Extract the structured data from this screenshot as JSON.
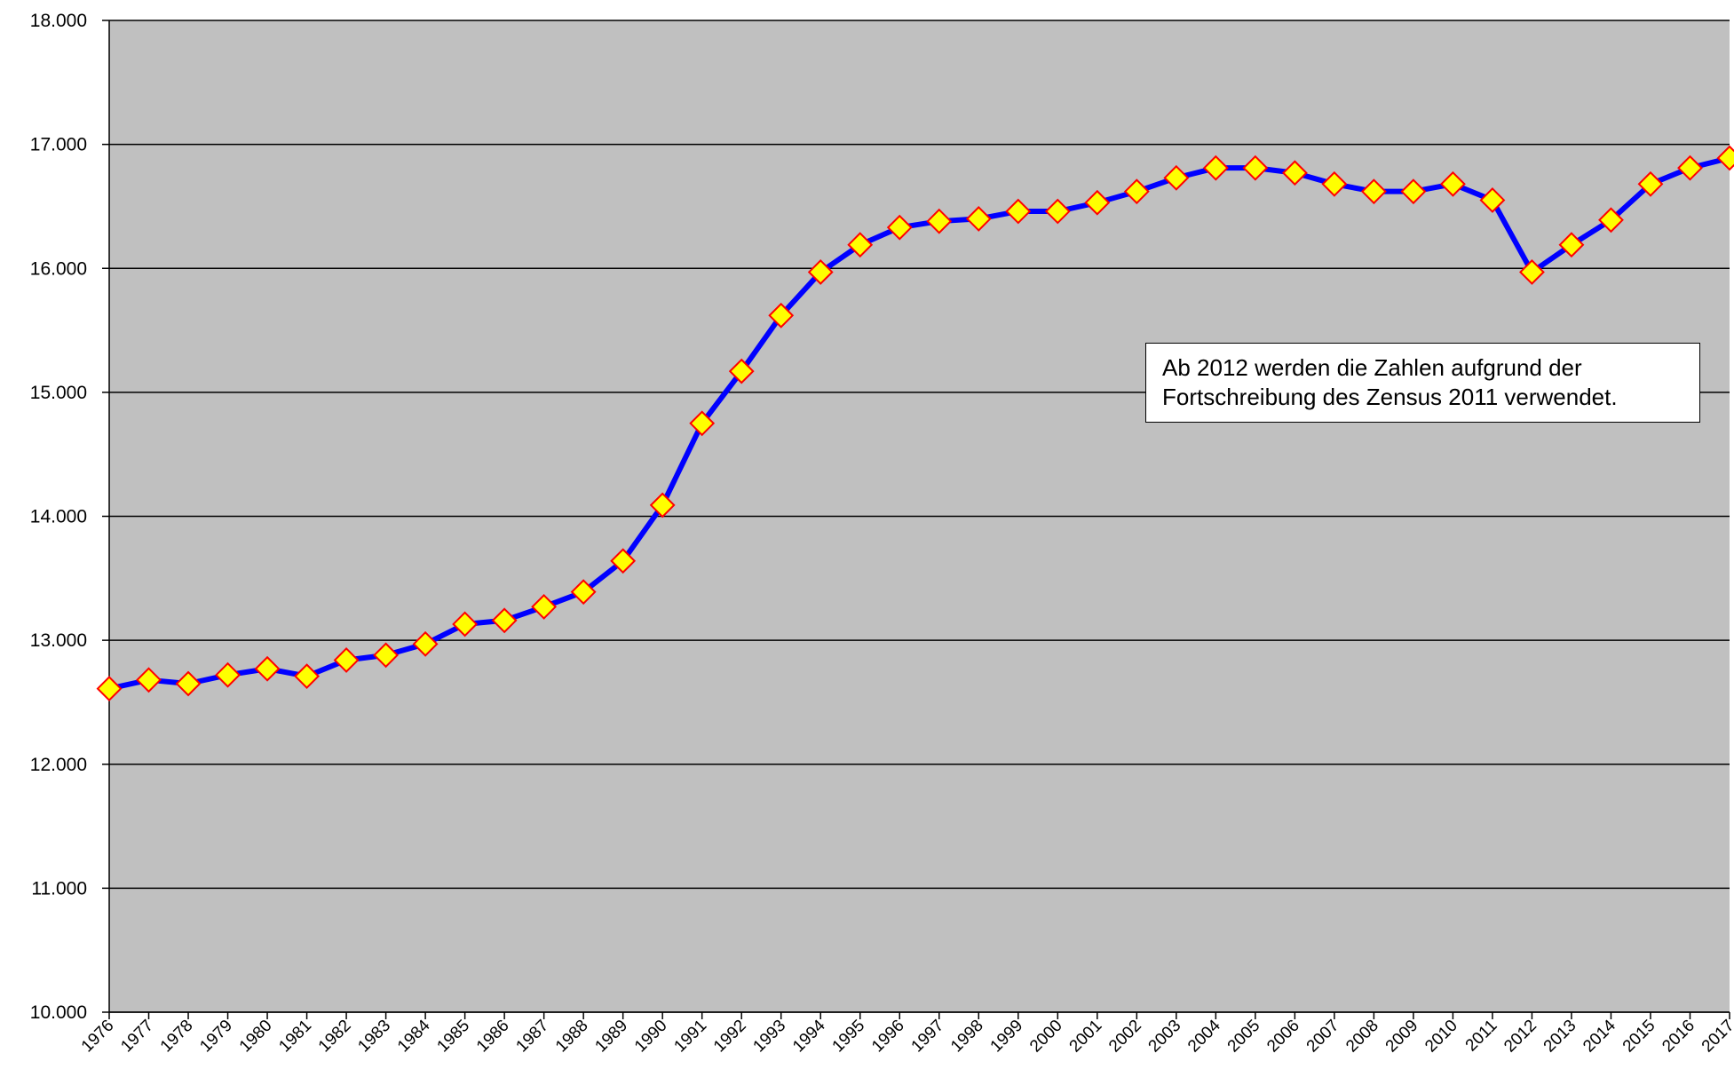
{
  "chart_data": {
    "type": "line",
    "title": "",
    "xlabel": "",
    "ylabel": "",
    "x": [
      1976,
      1977,
      1978,
      1979,
      1980,
      1981,
      1982,
      1983,
      1984,
      1985,
      1986,
      1987,
      1988,
      1989,
      1990,
      1991,
      1992,
      1993,
      1994,
      1995,
      1996,
      1997,
      1998,
      1999,
      2000,
      2001,
      2002,
      2003,
      2004,
      2005,
      2006,
      2007,
      2008,
      2009,
      2010,
      2011,
      2012,
      2013,
      2014,
      2015,
      2016,
      2017
    ],
    "series": [
      {
        "values": [
          12610,
          12680,
          12650,
          12720,
          12770,
          12710,
          12840,
          12880,
          12970,
          13130,
          13160,
          13270,
          13390,
          13640,
          14090,
          14750,
          15170,
          15620,
          15970,
          16190,
          16330,
          16380,
          16400,
          16460,
          16460,
          16530,
          16620,
          16730,
          16810,
          16810,
          16770,
          16680,
          16620,
          16620,
          16680,
          16550,
          15970,
          16190,
          16390,
          16680,
          16810,
          16890
        ],
        "line_color": "#0000ff",
        "marker": "diamond",
        "marker_fill": "#ffff00",
        "marker_edge": "#ff0000"
      }
    ],
    "ylim": [
      10000,
      18000
    ],
    "yticks": [
      10000,
      11000,
      12000,
      13000,
      14000,
      15000,
      16000,
      17000,
      18000
    ],
    "ytick_labels": [
      "10.000",
      "11.000",
      "12.000",
      "13.000",
      "14.000",
      "15.000",
      "16.000",
      "17.000",
      "18.000"
    ],
    "xtick_labels": [
      "1976",
      "1977",
      "1978",
      "1979",
      "1980",
      "1981",
      "1982",
      "1983",
      "1984",
      "1985",
      "1986",
      "1987",
      "1988",
      "1989",
      "1990",
      "1991",
      "1992",
      "1993",
      "1994",
      "1995",
      "1996",
      "1997",
      "1998",
      "1999",
      "2000",
      "2001",
      "2002",
      "2003",
      "2004",
      "2005",
      "2006",
      "2007",
      "2008",
      "2009",
      "2010",
      "2011",
      "2012",
      "2013",
      "2014",
      "2015",
      "2016",
      "2017"
    ],
    "grid": "horizontal",
    "plot_background": "#c0c0c0",
    "annotation": {
      "line1": "Ab 2012 werden die Zahlen aufgrund der",
      "line2": "Fortschreibung des Zensus 2011 verwendet."
    }
  }
}
